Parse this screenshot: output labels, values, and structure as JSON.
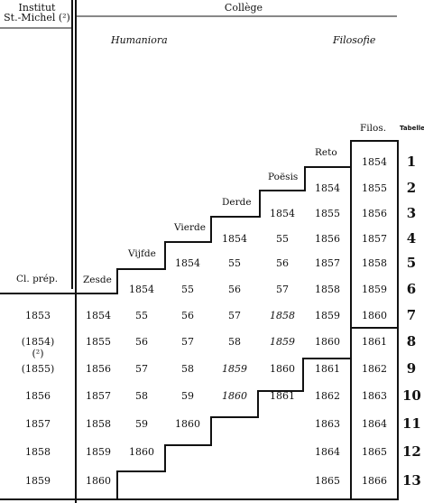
{
  "header": {
    "institut": "Institut",
    "institut2": "St.-Michel (²)",
    "college": "Collège",
    "humaniora": "Humaniora",
    "filosofie": "Filosofie",
    "tabellen": "Tabellen"
  },
  "levels": {
    "clprep": "Cl. prép.",
    "zesde": "Zesde",
    "vijfde": "Vijfde",
    "vierde": "Vierde",
    "derde": "Derde",
    "poesis": "Poësis",
    "reto": "Reto",
    "filos": "Filos."
  },
  "rows": [
    {
      "tab": "1",
      "cells": {
        "filos": "1854"
      }
    },
    {
      "tab": "2",
      "cells": {
        "reto": "1854",
        "filos": "1855"
      }
    },
    {
      "tab": "3",
      "cells": {
        "poesis": "1854",
        "reto": "1855",
        "filos": "1856"
      }
    },
    {
      "tab": "4",
      "cells": {
        "derde": "1854",
        "poesis": "55",
        "reto": "1856",
        "filos": "1857"
      }
    },
    {
      "tab": "5",
      "cells": {
        "vierde": "1854",
        "derde": "55",
        "poesis": "56",
        "reto": "1857",
        "filos": "1858"
      }
    },
    {
      "tab": "6",
      "cells": {
        "vijfde": "1854",
        "vierde": "55",
        "derde": "56",
        "poesis": "57",
        "reto": "1858",
        "filos": "1859"
      }
    },
    {
      "tab": "7",
      "cells": {
        "clprep": "1853",
        "zesde": "1854",
        "vijfde": "55",
        "vierde": "56",
        "derde": "57",
        "poesis": "1858",
        "reto": "1859",
        "filos": "1860"
      }
    },
    {
      "tab": "8",
      "cells": {
        "clprep": "(1854) (²)",
        "zesde": "1855",
        "vijfde": "56",
        "vierde": "57",
        "derde": "58",
        "poesis": "1859",
        "reto": "1860",
        "filos": "1861"
      }
    },
    {
      "tab": "9",
      "cells": {
        "clprep": "(1855)",
        "zesde": "1856",
        "vijfde": "57",
        "vierde": "58",
        "derde": "1859",
        "poesis": "1860",
        "reto": "1861",
        "filos": "1862"
      }
    },
    {
      "tab": "10",
      "cells": {
        "clprep": "1856",
        "zesde": "1857",
        "vijfde": "58",
        "vierde": "59",
        "derde": "1860",
        "poesis": "1861",
        "reto": "1862",
        "filos": "1863"
      }
    },
    {
      "tab": "11",
      "cells": {
        "clprep": "1857",
        "zesde": "1858",
        "vijfde": "59",
        "vierde": "1860",
        "reto": "1863",
        "filos": "1864"
      }
    },
    {
      "tab": "12",
      "cells": {
        "clprep": "1858",
        "zesde": "1859",
        "vijfde": "1860",
        "reto": "1864",
        "filos": "1865"
      }
    },
    {
      "tab": "13",
      "cells": {
        "clprep": "1859",
        "zesde": "1860",
        "reto": "1865",
        "filos": "1866"
      }
    }
  ]
}
